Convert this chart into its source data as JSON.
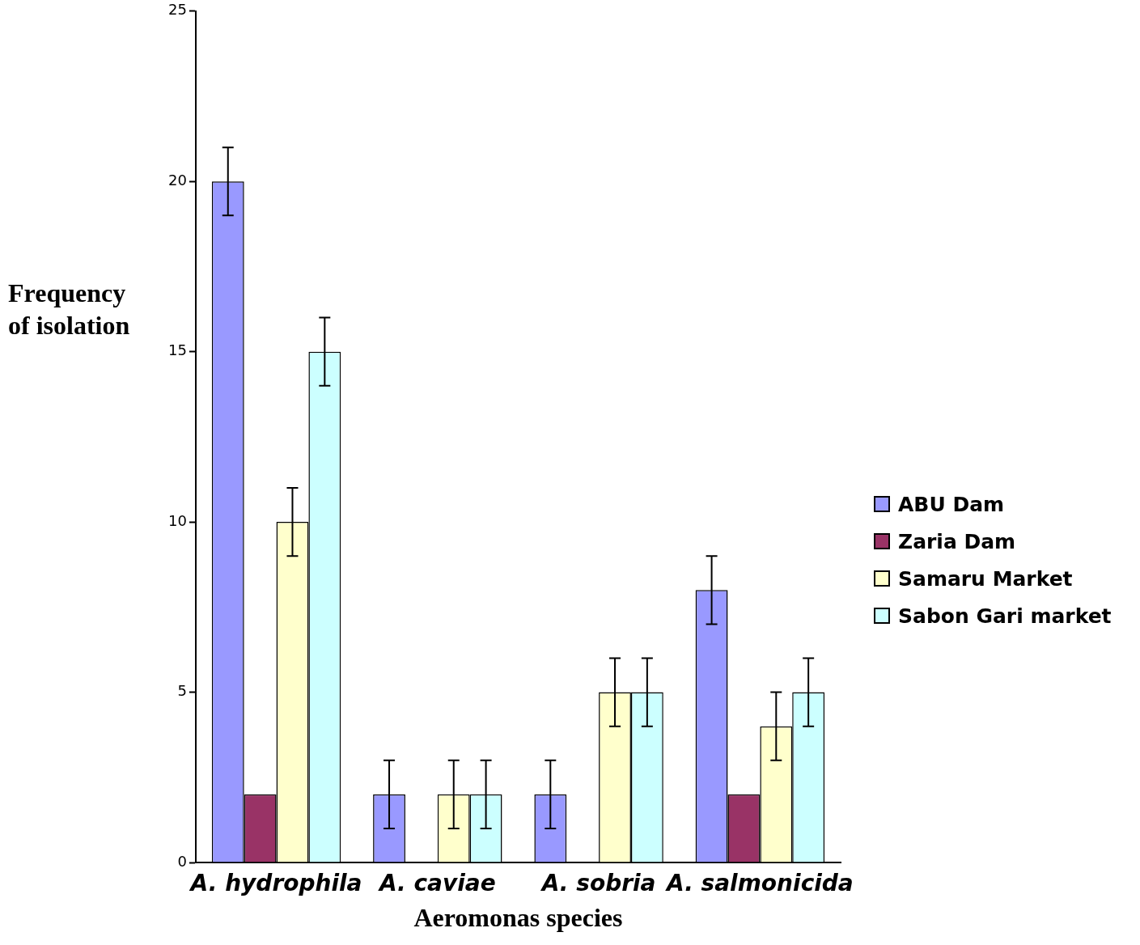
{
  "chart_data": {
    "type": "bar",
    "xlabel": "Aeromonas species",
    "ylabel": "Frequency of isolation",
    "categories": [
      "A. hydrophila",
      "A. caviae",
      "A. sobria",
      "A. salmonicida"
    ],
    "series": [
      {
        "name": "ABU Dam",
        "color": "#9999ff",
        "values": [
          20,
          2,
          2,
          8
        ],
        "errors": [
          1,
          1,
          1,
          1
        ]
      },
      {
        "name": "Zaria Dam",
        "color": "#993366",
        "values": [
          2,
          null,
          null,
          2
        ]
      },
      {
        "name": "Samaru Market",
        "color": "#ffffcc",
        "values": [
          10,
          2,
          5,
          4
        ],
        "errors": [
          1,
          1,
          1,
          1
        ]
      },
      {
        "name": "Sabon Gari market",
        "color": "#ccffff",
        "values": [
          15,
          2,
          5,
          5
        ],
        "errors": [
          1,
          1,
          1,
          1
        ]
      }
    ],
    "ylim": [
      0,
      25
    ],
    "yticks": [
      0,
      5,
      10,
      15,
      20,
      25
    ],
    "grid": false,
    "legend": "right"
  }
}
